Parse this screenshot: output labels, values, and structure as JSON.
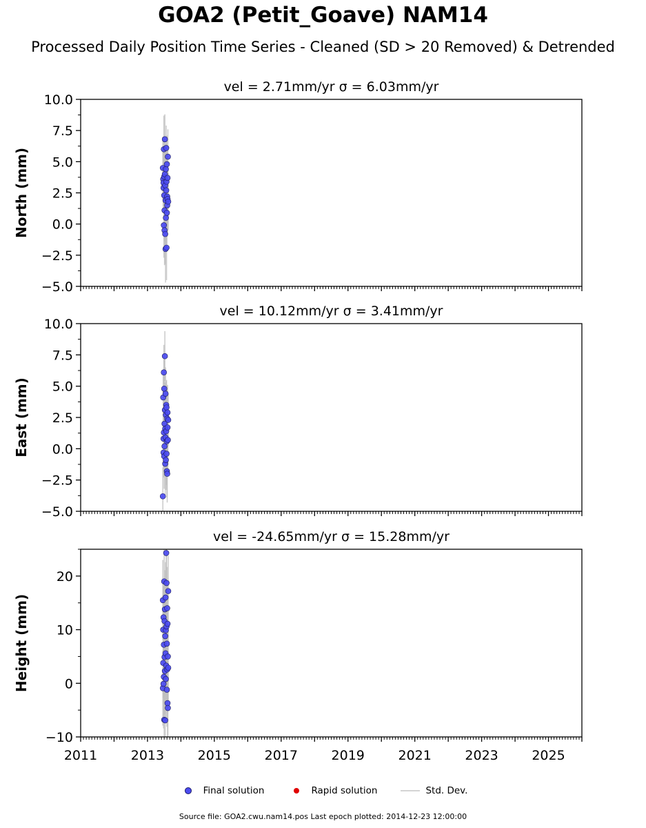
{
  "title": "GOA2 (Petit_Goave) NAM14",
  "subtitle": "Processed Daily Position Time Series - Cleaned (SD > 20 Removed) & Detrended",
  "legend": {
    "final_label": "Final solution",
    "rapid_label": "Rapid solution",
    "std_label": "Std. Dev."
  },
  "footer": "Source file: GOA2.cwu.nam14.pos  Last epoch plotted: 2014-12-23 12:00:00",
  "colors": {
    "final": "#4b4bf0",
    "rapid": "#e00000",
    "std": "#d4d4d4",
    "std_dark": "#8a8a8a"
  },
  "chart_data": [
    {
      "type": "scatter",
      "title": "vel = 2.71mm/yr   σ = 6.03mm/yr",
      "ylabel": "North (mm)",
      "xlabel": "",
      "xlim": [
        2011,
        2026
      ],
      "ylim": [
        -5,
        10
      ],
      "yticks": [
        -5,
        -2.5,
        0,
        2.5,
        5,
        7.5,
        10
      ],
      "ytick_labels": [
        "−5.0",
        "−2.5",
        "0.0",
        "2.5",
        "5.0",
        "7.5",
        "10.0"
      ],
      "xticks": [
        2011,
        2013,
        2015,
        2017,
        2019,
        2021,
        2023,
        2025
      ],
      "show_xtick_labels": false,
      "grid": false,
      "series": [
        {
          "name": "Final solution",
          "x": [
            2013.46,
            2013.47,
            2013.48,
            2013.48,
            2013.49,
            2013.49,
            2013.5,
            2013.5,
            2013.51,
            2013.51,
            2013.52,
            2013.52,
            2013.53,
            2013.53,
            2013.54,
            2013.54,
            2013.55,
            2013.55,
            2013.56,
            2013.56,
            2013.57,
            2013.57,
            2013.58,
            2013.58,
            2013.59,
            2013.59,
            2013.6,
            2013.6,
            2013.61,
            2013.62
          ],
          "y": [
            4.5,
            3.6,
            2.9,
            3.3,
            6.0,
            -0.1,
            2.3,
            3.8,
            1.1,
            -0.5,
            6.8,
            4.0,
            3.1,
            -0.8,
            -2.0,
            1.9,
            0.5,
            4.4,
            2.7,
            6.1,
            -1.9,
            3.4,
            0.9,
            4.8,
            1.5,
            2.2,
            3.7,
            2.0,
            5.4,
            1.8
          ],
          "std": [
            2.5,
            2.2,
            2.0,
            2.4,
            2.7,
            2.6,
            2.3,
            2.9,
            2.5,
            2.8,
            2.0,
            2.2,
            2.6,
            2.4,
            2.7,
            2.3,
            2.5,
            2.1,
            2.4,
            1.8,
            2.6,
            2.4,
            2.7,
            2.3,
            2.5,
            2.8,
            2.4,
            2.6,
            2.2,
            2.3
          ]
        },
        {
          "name": "Rapid solution",
          "x": [],
          "y": []
        }
      ]
    },
    {
      "type": "scatter",
      "title": "vel = 10.12mm/yr   σ = 3.41mm/yr",
      "ylabel": "East (mm)",
      "xlabel": "",
      "xlim": [
        2011,
        2026
      ],
      "ylim": [
        -5,
        10
      ],
      "yticks": [
        -5,
        -2.5,
        0,
        2.5,
        5,
        7.5,
        10
      ],
      "ytick_labels": [
        "−5.0",
        "−2.5",
        "0.0",
        "2.5",
        "5.0",
        "7.5",
        "10.0"
      ],
      "xticks": [
        2011,
        2013,
        2015,
        2017,
        2019,
        2021,
        2023,
        2025
      ],
      "show_xtick_labels": false,
      "grid": false,
      "series": [
        {
          "name": "Final solution",
          "x": [
            2013.46,
            2013.47,
            2013.48,
            2013.48,
            2013.49,
            2013.49,
            2013.5,
            2013.5,
            2013.51,
            2013.51,
            2013.52,
            2013.52,
            2013.53,
            2013.53,
            2013.54,
            2013.54,
            2013.55,
            2013.55,
            2013.56,
            2013.56,
            2013.57,
            2013.57,
            2013.58,
            2013.58,
            2013.59,
            2013.59,
            2013.6,
            2013.6,
            2013.61,
            2013.62
          ],
          "y": [
            -3.8,
            4.1,
            0.8,
            -0.3,
            6.1,
            1.3,
            4.8,
            -0.6,
            2.0,
            0.2,
            7.4,
            3.1,
            -1.2,
            1.6,
            4.4,
            0.9,
            -0.9,
            2.7,
            3.5,
            1.4,
            -0.4,
            3.3,
            0.6,
            -1.8,
            2.4,
            -2.0,
            1.7,
            2.9,
            0.7,
            2.3
          ],
          "std": [
            2.3,
            2.1,
            2.4,
            2.0,
            2.2,
            2.5,
            2.3,
            2.6,
            2.1,
            2.4,
            2.0,
            2.2,
            2.5,
            2.3,
            2.1,
            2.6,
            2.4,
            2.0,
            1.9,
            2.3,
            2.5,
            2.2,
            2.4,
            2.1,
            2.6,
            2.3,
            2.0,
            2.2,
            2.4,
            2.1
          ]
        },
        {
          "name": "Rapid solution",
          "x": [],
          "y": []
        }
      ]
    },
    {
      "type": "scatter",
      "title": "vel = -24.65mm/yr   σ = 15.28mm/yr",
      "ylabel": "Height (mm)",
      "xlabel": "",
      "xlim": [
        2011,
        2026
      ],
      "ylim": [
        -10,
        25
      ],
      "yticks": [
        -10,
        0,
        10,
        20
      ],
      "ytick_labels": [
        "−10",
        "0",
        "10",
        "20"
      ],
      "xticks": [
        2011,
        2013,
        2015,
        2017,
        2019,
        2021,
        2023,
        2025
      ],
      "xtick_labels": [
        "2011",
        "2013",
        "2015",
        "2017",
        "2019",
        "2021",
        "2023",
        "2025"
      ],
      "show_xtick_labels": true,
      "grid": false,
      "series": [
        {
          "name": "Final solution",
          "x": [
            2013.46,
            2013.46,
            2013.47,
            2013.47,
            2013.48,
            2013.48,
            2013.49,
            2013.49,
            2013.5,
            2013.5,
            2013.51,
            2013.51,
            2013.52,
            2013.52,
            2013.53,
            2013.53,
            2013.54,
            2013.54,
            2013.55,
            2013.55,
            2013.56,
            2013.56,
            2013.57,
            2013.57,
            2013.58,
            2013.58,
            2013.59,
            2013.59,
            2013.6,
            2013.6,
            2013.61,
            2013.61,
            2013.62,
            2013.62
          ],
          "y": [
            15.5,
            -0.9,
            10.0,
            3.8,
            12.3,
            -0.1,
            7.2,
            1.2,
            19.0,
            -6.8,
            11.6,
            4.9,
            2.3,
            13.8,
            -6.9,
            8.8,
            5.6,
            16.0,
            0.8,
            9.9,
            24.3,
            3.3,
            18.7,
            10.6,
            -1.2,
            7.4,
            14.0,
            2.6,
            -3.7,
            11.1,
            5.0,
            -4.6,
            17.2,
            2.9
          ],
          "std": [
            7.5,
            7.0,
            8.0,
            6.5,
            7.2,
            8.3,
            6.8,
            7.6,
            7.0,
            7.8,
            6.9,
            7.4,
            8.1,
            7.3,
            6.7,
            7.9,
            7.1,
            6.6,
            8.2,
            7.0,
            6.8,
            7.5,
            7.2,
            8.0,
            6.9,
            7.4,
            7.7,
            6.8,
            7.9,
            7.2,
            8.4,
            7.0,
            6.6,
            7.5
          ]
        },
        {
          "name": "Rapid solution",
          "x": [],
          "y": []
        }
      ]
    }
  ]
}
